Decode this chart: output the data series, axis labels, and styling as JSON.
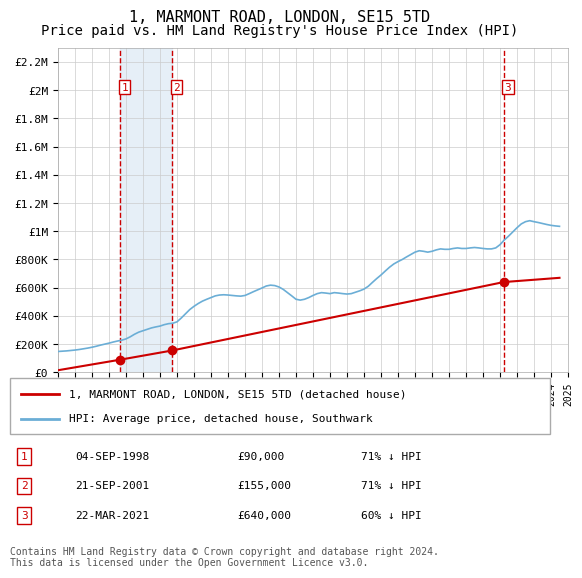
{
  "title": "1, MARMONT ROAD, LONDON, SE15 5TD",
  "subtitle": "Price paid vs. HM Land Registry's House Price Index (HPI)",
  "xlabel": "",
  "ylabel": "",
  "ylim": [
    0,
    2300000
  ],
  "yticks": [
    0,
    200000,
    400000,
    600000,
    800000,
    1000000,
    1200000,
    1400000,
    1600000,
    1800000,
    2000000,
    2200000
  ],
  "ytick_labels": [
    "£0",
    "£200K",
    "£400K",
    "£600K",
    "£800K",
    "£1M",
    "£1.2M",
    "£1.4M",
    "£1.6M",
    "£1.8M",
    "£2M",
    "£2.2M"
  ],
  "hpi_color": "#6baed6",
  "price_color": "#cc0000",
  "sale_marker_color": "#cc0000",
  "vline_color": "#cc0000",
  "background_color": "#ffffff",
  "grid_color": "#cccccc",
  "legend_box_color": "#000000",
  "sale_label_color": "#cc0000",
  "title_fontsize": 11,
  "subtitle_fontsize": 10,
  "transactions": [
    {
      "num": 1,
      "date": "04-SEP-1998",
      "year": 1998.67,
      "price": 90000,
      "pct": "71%"
    },
    {
      "num": 2,
      "date": "21-SEP-2001",
      "year": 2001.72,
      "price": 155000,
      "pct": "71%"
    },
    {
      "num": 3,
      "date": "22-MAR-2021",
      "year": 2021.22,
      "price": 640000,
      "pct": "60%"
    }
  ],
  "legend_entries": [
    "1, MARMONT ROAD, LONDON, SE15 5TD (detached house)",
    "HPI: Average price, detached house, Southwark"
  ],
  "footer": "Contains HM Land Registry data © Crown copyright and database right 2024.\nThis data is licensed under the Open Government Licence v3.0.",
  "hpi_data_x": [
    1995.0,
    1995.25,
    1995.5,
    1995.75,
    1996.0,
    1996.25,
    1996.5,
    1996.75,
    1997.0,
    1997.25,
    1997.5,
    1997.75,
    1998.0,
    1998.25,
    1998.5,
    1998.75,
    1999.0,
    1999.25,
    1999.5,
    1999.75,
    2000.0,
    2000.25,
    2000.5,
    2000.75,
    2001.0,
    2001.25,
    2001.5,
    2001.75,
    2002.0,
    2002.25,
    2002.5,
    2002.75,
    2003.0,
    2003.25,
    2003.5,
    2003.75,
    2004.0,
    2004.25,
    2004.5,
    2004.75,
    2005.0,
    2005.25,
    2005.5,
    2005.75,
    2006.0,
    2006.25,
    2006.5,
    2006.75,
    2007.0,
    2007.25,
    2007.5,
    2007.75,
    2008.0,
    2008.25,
    2008.5,
    2008.75,
    2009.0,
    2009.25,
    2009.5,
    2009.75,
    2010.0,
    2010.25,
    2010.5,
    2010.75,
    2011.0,
    2011.25,
    2011.5,
    2011.75,
    2012.0,
    2012.25,
    2012.5,
    2012.75,
    2013.0,
    2013.25,
    2013.5,
    2013.75,
    2014.0,
    2014.25,
    2014.5,
    2014.75,
    2015.0,
    2015.25,
    2015.5,
    2015.75,
    2016.0,
    2016.25,
    2016.5,
    2016.75,
    2017.0,
    2017.25,
    2017.5,
    2017.75,
    2018.0,
    2018.25,
    2018.5,
    2018.75,
    2019.0,
    2019.25,
    2019.5,
    2019.75,
    2020.0,
    2020.25,
    2020.5,
    2020.75,
    2021.0,
    2021.25,
    2021.5,
    2021.75,
    2022.0,
    2022.25,
    2022.5,
    2022.75,
    2023.0,
    2023.25,
    2023.5,
    2023.75,
    2024.0,
    2024.25,
    2024.5
  ],
  "hpi_data_y": [
    148000,
    150000,
    152000,
    155000,
    158000,
    162000,
    167000,
    172000,
    178000,
    185000,
    193000,
    200000,
    207000,
    215000,
    222000,
    228000,
    237000,
    252000,
    270000,
    285000,
    295000,
    305000,
    315000,
    322000,
    328000,
    338000,
    345000,
    348000,
    358000,
    385000,
    415000,
    445000,
    468000,
    488000,
    505000,
    518000,
    530000,
    542000,
    548000,
    550000,
    548000,
    545000,
    542000,
    540000,
    545000,
    558000,
    572000,
    585000,
    598000,
    612000,
    618000,
    615000,
    605000,
    588000,
    565000,
    542000,
    518000,
    512000,
    518000,
    530000,
    545000,
    558000,
    565000,
    562000,
    558000,
    565000,
    562000,
    558000,
    555000,
    558000,
    568000,
    578000,
    590000,
    610000,
    638000,
    665000,
    690000,
    718000,
    745000,
    768000,
    785000,
    800000,
    818000,
    835000,
    852000,
    862000,
    858000,
    852000,
    858000,
    868000,
    875000,
    872000,
    872000,
    878000,
    882000,
    878000,
    878000,
    882000,
    885000,
    882000,
    878000,
    875000,
    875000,
    882000,
    905000,
    938000,
    965000,
    995000,
    1025000,
    1052000,
    1068000,
    1075000,
    1068000,
    1062000,
    1055000,
    1048000,
    1042000,
    1038000,
    1035000
  ],
  "price_data_x": [
    1995.0,
    1998.67,
    2001.72,
    2021.22,
    2024.5
  ],
  "price_data_y": [
    0,
    90000,
    155000,
    640000,
    680000
  ],
  "xmin": 1995.0,
  "xmax": 2025.0
}
